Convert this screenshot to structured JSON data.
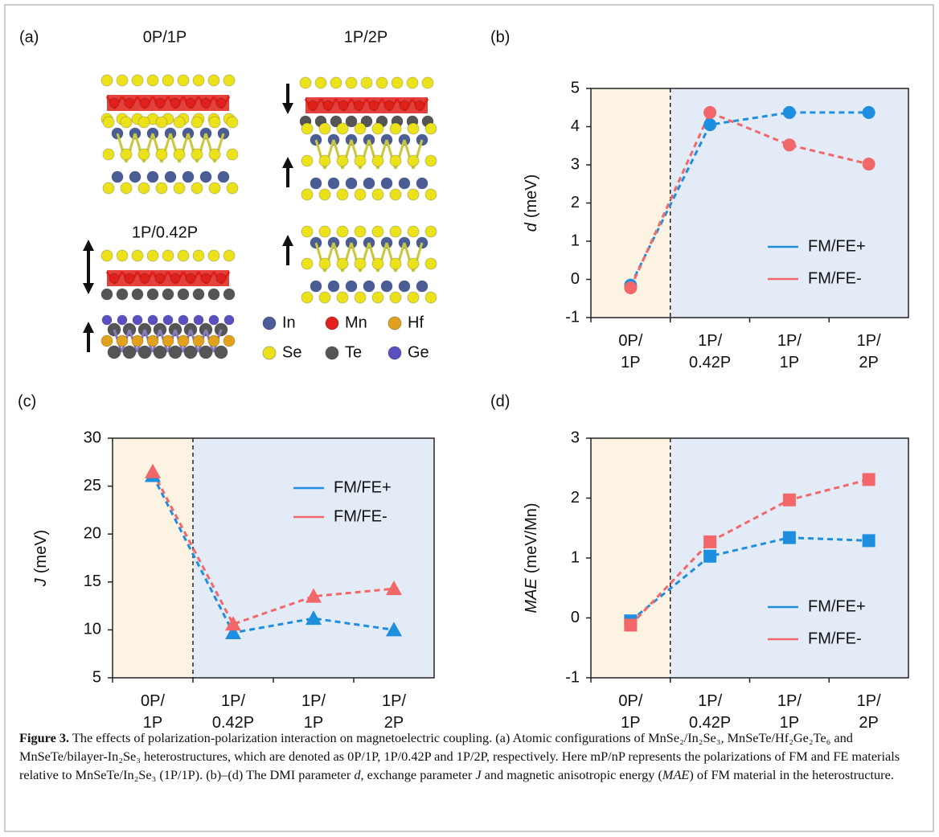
{
  "panel_a": {
    "label": "(a)",
    "structures": [
      "0P/1P",
      "1P/2P",
      "1P/0.42P"
    ],
    "legend": [
      {
        "name": "In",
        "color": "#4b5d97"
      },
      {
        "name": "Mn",
        "color": "#e0201a"
      },
      {
        "name": "Hf",
        "color": "#e0a21c"
      },
      {
        "name": "Se",
        "color": "#ece21c"
      },
      {
        "name": "Te",
        "color": "#555555"
      },
      {
        "name": "Ge",
        "color": "#5a4fc0"
      }
    ]
  },
  "chart_data": [
    {
      "type": "line",
      "label": "(b)",
      "y_label_symbol": "d",
      "y_label_unit": "(meV)",
      "categories": [
        "0P/\n1P",
        "1P/\n0.42P",
        "1P/\n1P",
        "1P/\n2P"
      ],
      "series": [
        {
          "name": "FM/FE+",
          "color": "#1e8fdf",
          "values": [
            -0.15,
            4.05,
            4.37,
            4.37
          ]
        },
        {
          "name": "FM/FE-",
          "color": "#f2676a",
          "values": [
            -0.22,
            4.37,
            3.52,
            3.02
          ]
        }
      ],
      "ylim": [
        -1,
        5
      ],
      "yticks": [
        -1,
        0,
        1,
        2,
        3,
        4,
        5
      ],
      "marker": "circle",
      "legend": "lower right",
      "shading": [
        "#fcf3e2",
        "#e3ebf6"
      ]
    },
    {
      "type": "line",
      "label": "(c)",
      "y_label_symbol": "J",
      "y_label_unit": "(meV)",
      "categories": [
        "0P/\n1P",
        "1P/\n0.42P",
        "1P/\n1P",
        "1P/\n2P"
      ],
      "series": [
        {
          "name": "FM/FE+",
          "color": "#1e8fdf",
          "values": [
            26.1,
            9.7,
            11.2,
            10.0
          ]
        },
        {
          "name": "FM/FE-",
          "color": "#f2676a",
          "values": [
            26.5,
            10.6,
            13.5,
            14.3
          ]
        }
      ],
      "ylim": [
        5,
        30
      ],
      "yticks": [
        5,
        10,
        15,
        20,
        25,
        30
      ],
      "marker": "triangle",
      "legend": "upper right",
      "shading": [
        "#fcf3e2",
        "#e3ebf6"
      ]
    },
    {
      "type": "line",
      "label": "(d)",
      "y_label_symbol": "MAE",
      "y_label_unit": "(meV/Mn)",
      "categories": [
        "0P/\n1P",
        "1P/\n0.42P",
        "1P/\n1P",
        "1P/\n2P"
      ],
      "series": [
        {
          "name": "FM/FE+",
          "color": "#1e8fdf",
          "values": [
            -0.05,
            1.03,
            1.34,
            1.29
          ]
        },
        {
          "name": "FM/FE-",
          "color": "#f2676a",
          "values": [
            -0.12,
            1.27,
            1.97,
            2.31
          ]
        }
      ],
      "ylim": [
        -1,
        3
      ],
      "yticks": [
        -1,
        0,
        1,
        2,
        3
      ],
      "marker": "square",
      "legend": "lower right",
      "shading": [
        "#fcf3e2",
        "#e3ebf6"
      ]
    }
  ],
  "caption": {
    "label": "Figure 3.",
    "parts": [
      " The effects of polarization-polarization interaction on magnetoelectric coupling. (a) Atomic configurations of MnSe₂/In₂Se₃, MnSeTe/Hf₂Ge₂Te₆ and MnSeTe/bilayer-In₂Se₃ heterostructures, which are denoted as 0P/1P, 1P/0.42P and 1P/2P, respectively. Here mP/nP represents the polarizations of FM and FE materials relative to MnSeTe/In₂Se₃ (1P/1P). (b)–(d) The DMI parameter ",
      "d",
      ", exchange parameter ",
      "J",
      " and magnetic anisotropic energy (",
      "MAE",
      ") of FM material in the heterostructure."
    ]
  }
}
